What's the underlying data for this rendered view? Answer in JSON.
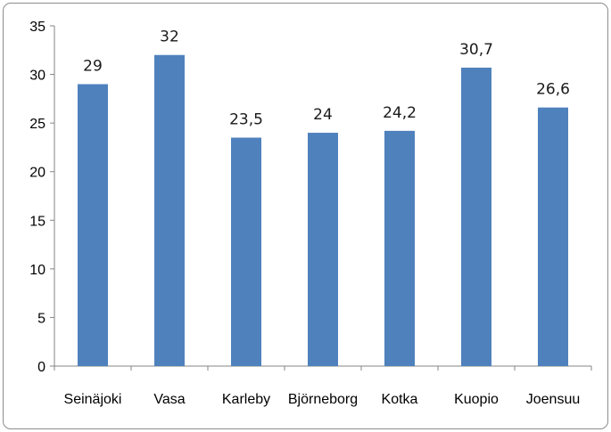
{
  "chart_data": {
    "type": "bar",
    "categories": [
      "Seinäjoki",
      "Vasa",
      "Karleby",
      "Björneborg",
      "Kotka",
      "Kuopio",
      "Joensuu"
    ],
    "values": [
      29,
      32,
      23.5,
      24,
      24.2,
      30.7,
      26.6
    ],
    "data_labels": [
      "29",
      "32",
      "23,5",
      "24",
      "24,2",
      "30,7",
      "26,6"
    ],
    "ylim": [
      0,
      35
    ],
    "yticks": [
      0,
      5,
      10,
      15,
      20,
      25,
      30,
      35
    ],
    "title": "",
    "xlabel": "",
    "ylabel": "",
    "grid": false,
    "bar_color": "#4f81bd"
  }
}
